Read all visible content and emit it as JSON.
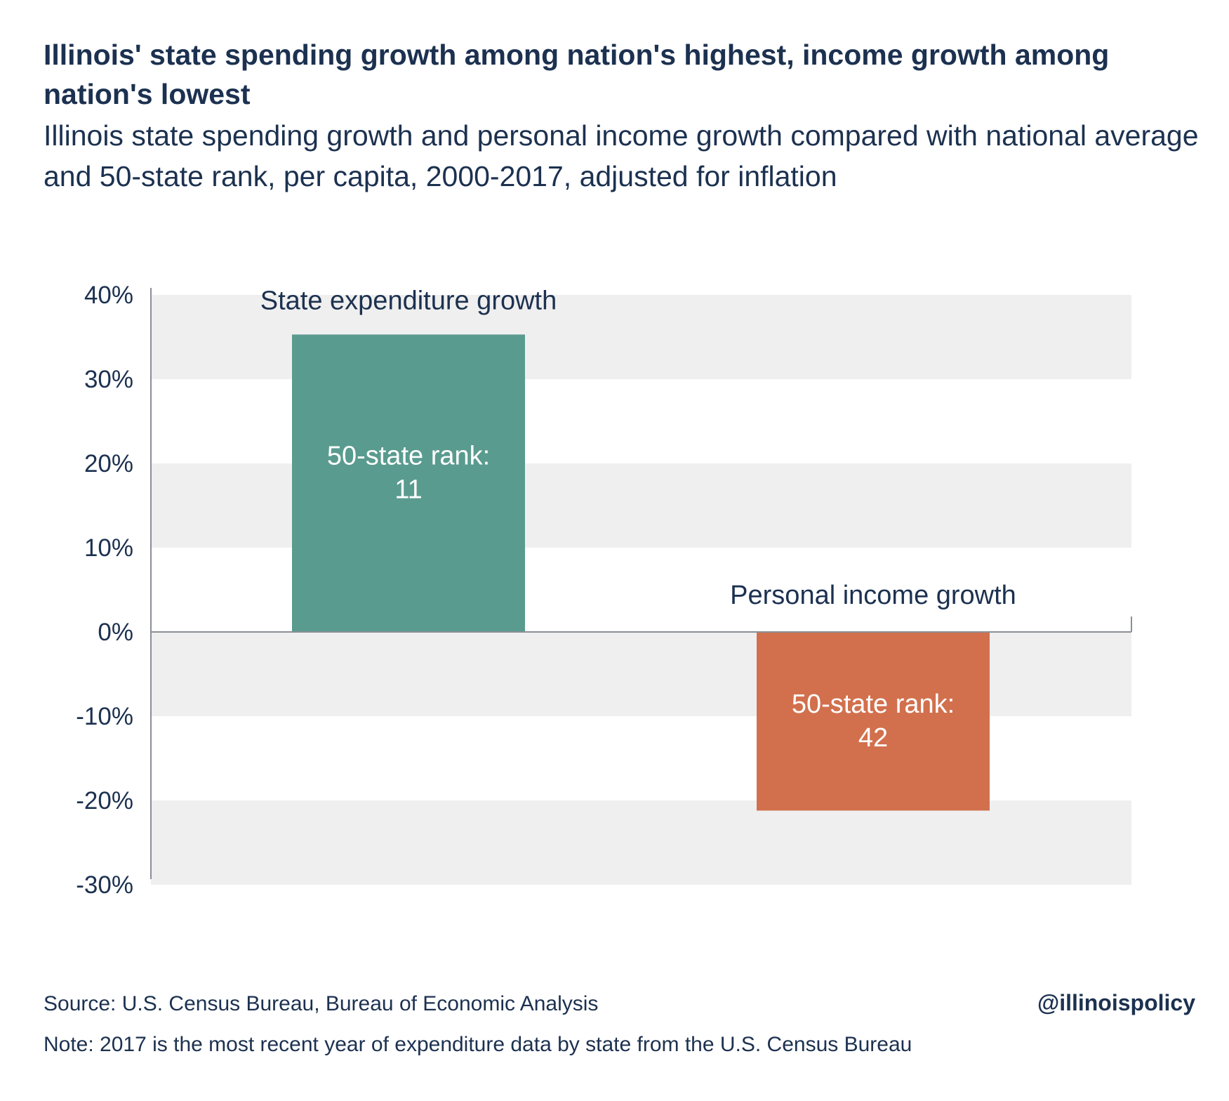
{
  "header": {
    "title": "Illinois' state spending growth among nation's highest, income growth among nation's lowest",
    "subtitle": "Illinois state spending growth and personal income growth compared with national average and 50-state rank, per capita, 2000-2017, adjusted for inflation"
  },
  "footer": {
    "source": "Source: U.S. Census Bureau, Bureau of Economic Analysis",
    "note": "Note: 2017 is the most recent year of expenditure data by state from the U.S. Census Bureau",
    "handle": "@illinoispolicy"
  },
  "colors": {
    "text": "#1c3150",
    "band": "#efefef",
    "axis": "#8a8f96",
    "expenditure_bar": "#5a9b8f",
    "income_bar": "#d2704d"
  },
  "chart_data": {
    "type": "bar",
    "categories": [
      "State expenditure growth",
      "Personal income growth"
    ],
    "values": [
      35.3,
      -21.2
    ],
    "bar_labels": [
      [
        "50-state rank:",
        "11"
      ],
      [
        "50-state rank:",
        "42"
      ]
    ],
    "ylim": [
      -30,
      40
    ],
    "yticks": [
      40,
      30,
      20,
      10,
      0,
      -10,
      -20,
      -30
    ],
    "ytick_labels": [
      "40%",
      "30%",
      "20%",
      "10%",
      "0%",
      "-10%",
      "-20%",
      "-30%"
    ],
    "grid": "alternating bands",
    "legend": "none"
  }
}
